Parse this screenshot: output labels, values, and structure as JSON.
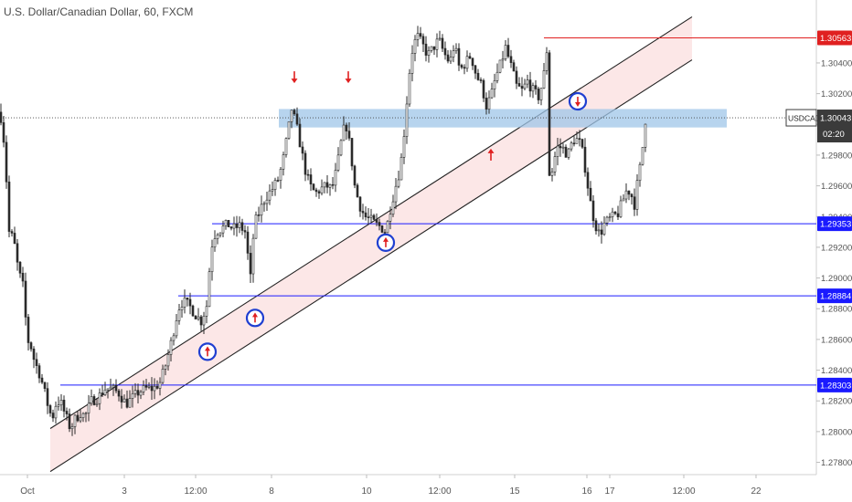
{
  "header": {
    "symbol_title": "U.S. Dollar/Canadian Dollar, 60, FXCM"
  },
  "colors": {
    "candle": "#2b2b2b",
    "level_line": "#1a1aff",
    "resistance_line": "#e02020",
    "zone_fill": "#9fc5e8",
    "channel_fill": "#fbe3e3",
    "axis_text": "#555555",
    "badge_blue": "#1f3fd1",
    "badge_red": "#e02020",
    "badge_dark": "#3b3b3b"
  },
  "chart_data": {
    "type": "candlestick",
    "title": "U.S. Dollar/Canadian Dollar, 60, FXCM",
    "ylim": [
      1.2772,
      1.3078
    ],
    "y_ticks": [
      "1.27800",
      "1.28000",
      "1.28200",
      "1.28400",
      "1.28600",
      "1.28800",
      "1.29000",
      "1.29200",
      "1.29400",
      "1.29600",
      "1.29800",
      "1.30000",
      "1.30200",
      "1.30400"
    ],
    "x_ticks": [
      "Oct",
      "3",
      "12:00",
      "8",
      "10",
      "12:00",
      "15",
      "16",
      "17",
      "12:00",
      "22"
    ],
    "price_path": [
      [
        0,
        1.3008
      ],
      [
        3,
        1.2998
      ],
      [
        6,
        1.2975
      ],
      [
        10,
        1.293
      ],
      [
        15,
        1.2925
      ],
      [
        20,
        1.2905
      ],
      [
        25,
        1.2895
      ],
      [
        30,
        1.286
      ],
      [
        34,
        1.2855
      ],
      [
        38,
        1.2845
      ],
      [
        42,
        1.284
      ],
      [
        47,
        1.283
      ],
      [
        52,
        1.2818
      ],
      [
        57,
        1.2808
      ],
      [
        62,
        1.282
      ],
      [
        67,
        1.2818
      ],
      [
        72,
        1.281
      ],
      [
        77,
        1.2802
      ],
      [
        82,
        1.2808
      ],
      [
        88,
        1.2812
      ],
      [
        93,
        1.281
      ],
      [
        100,
        1.282
      ],
      [
        107,
        1.2822
      ],
      [
        115,
        1.2828
      ],
      [
        122,
        1.2828
      ],
      [
        130,
        1.2825
      ],
      [
        138,
        1.2818
      ],
      [
        145,
        1.2822
      ],
      [
        152,
        1.2826
      ],
      [
        160,
        1.2828
      ],
      [
        168,
        1.2828
      ],
      [
        175,
        1.2832
      ],
      [
        182,
        1.2845
      ],
      [
        188,
        1.286
      ],
      [
        195,
        1.288
      ],
      [
        200,
        1.2885
      ],
      [
        207,
        1.2882
      ],
      [
        214,
        1.2876
      ],
      [
        220,
        1.2872
      ],
      [
        226,
        1.2882
      ],
      [
        231,
        1.292
      ],
      [
        236,
        1.293
      ],
      [
        242,
        1.2932
      ],
      [
        249,
        1.2935
      ],
      [
        255,
        1.2932
      ],
      [
        262,
        1.2934
      ],
      [
        268,
        1.293
      ],
      [
        274,
        1.29
      ],
      [
        278,
        1.2935
      ],
      [
        283,
        1.2942
      ],
      [
        290,
        1.2952
      ],
      [
        298,
        1.2958
      ],
      [
        305,
        1.2965
      ],
      [
        310,
        1.2978
      ],
      [
        315,
        1.2995
      ],
      [
        319,
        1.301
      ],
      [
        324,
        1.3
      ],
      [
        329,
        1.2985
      ],
      [
        334,
        1.297
      ],
      [
        339,
        1.296
      ],
      [
        345,
        1.2955
      ],
      [
        351,
        1.2958
      ],
      [
        357,
        1.296
      ],
      [
        363,
        1.2958
      ],
      [
        368,
        1.297
      ],
      [
        373,
        1.2988
      ],
      [
        378,
        1.3002
      ],
      [
        383,
        1.2985
      ],
      [
        388,
        1.296
      ],
      [
        393,
        1.2948
      ],
      [
        399,
        1.294
      ],
      [
        405,
        1.2938
      ],
      [
        411,
        1.2935
      ],
      [
        417,
        1.2933
      ],
      [
        422,
        1.293
      ],
      [
        427,
        1.2945
      ],
      [
        432,
        1.2958
      ],
      [
        438,
        1.2972
      ],
      [
        443,
        1.3
      ],
      [
        447,
        1.303
      ],
      [
        451,
        1.3048
      ],
      [
        456,
        1.3058
      ],
      [
        462,
        1.3052
      ],
      [
        468,
        1.3045
      ],
      [
        474,
        1.305
      ],
      [
        480,
        1.3055
      ],
      [
        486,
        1.3046
      ],
      [
        492,
        1.304
      ],
      [
        497,
        1.3052
      ],
      [
        503,
        1.3035
      ],
      [
        509,
        1.304
      ],
      [
        515,
        1.3045
      ],
      [
        521,
        1.3032
      ],
      [
        527,
        1.3025
      ],
      [
        532,
        1.3012
      ],
      [
        537,
        1.3018
      ],
      [
        542,
        1.303
      ],
      [
        548,
        1.304
      ],
      [
        553,
        1.305
      ],
      [
        559,
        1.3038
      ],
      [
        565,
        1.3025
      ],
      [
        571,
        1.3022
      ],
      [
        577,
        1.3028
      ],
      [
        583,
        1.3022
      ],
      [
        589,
        1.3018
      ],
      [
        594,
        1.3028
      ],
      [
        598,
        1.3048
      ],
      [
        601,
        1.2968
      ],
      [
        604,
        1.297
      ],
      [
        609,
        1.2985
      ],
      [
        615,
        1.2985
      ],
      [
        621,
        1.298
      ],
      [
        627,
        1.299
      ],
      [
        633,
        1.299
      ],
      [
        638,
        1.298
      ],
      [
        643,
        1.296
      ],
      [
        647,
        1.2945
      ],
      [
        651,
        1.2935
      ],
      [
        656,
        1.2928
      ],
      [
        661,
        1.2935
      ],
      [
        666,
        1.2938
      ],
      [
        671,
        1.294
      ],
      [
        676,
        1.2942
      ],
      [
        681,
        1.295
      ],
      [
        686,
        1.2958
      ],
      [
        690,
        1.2955
      ],
      [
        694,
        1.2948
      ],
      [
        698,
        1.2965
      ],
      [
        702,
        1.2978
      ],
      [
        705,
        1.3
      ],
      [
        707,
        1.3006
      ]
    ],
    "levels": [
      {
        "label": "1.30563",
        "price": 1.30563,
        "kind": "resistance"
      },
      {
        "label": "1.29353",
        "price": 1.29353,
        "kind": "support"
      },
      {
        "label": "1.28884",
        "price": 1.28884,
        "kind": "support"
      },
      {
        "label": "1.28303",
        "price": 1.28303,
        "kind": "support"
      }
    ],
    "current_price": {
      "symbol": "USDCAD",
      "label": "1.30043",
      "price": 1.30043,
      "countdown": "02:20"
    },
    "zone": {
      "low": 1.2998,
      "high": 1.301
    },
    "channel": {
      "lower": [
        [
          55,
          1.2774
        ],
        [
          757,
          1.3042
        ]
      ],
      "upper": [
        [
          55,
          1.2802
        ],
        [
          757,
          1.307
        ]
      ]
    },
    "annotations": [
      {
        "kind": "arrow-down",
        "x": 322,
        "price": 1.3031
      },
      {
        "kind": "arrow-down",
        "x": 381,
        "price": 1.3031
      },
      {
        "kind": "arrow-up",
        "x": 537,
        "price": 1.298
      },
      {
        "kind": "circle-down",
        "x": 632,
        "price": 1.3015
      },
      {
        "kind": "circle-up",
        "x": 422,
        "price": 1.2923
      },
      {
        "kind": "circle-up",
        "x": 279,
        "price": 1.2874
      },
      {
        "kind": "circle-up",
        "x": 227,
        "price": 1.2852
      }
    ]
  }
}
